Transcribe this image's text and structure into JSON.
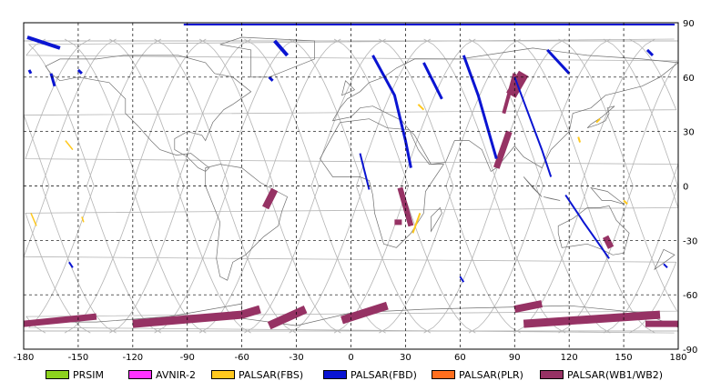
{
  "map": {
    "lon_ticks": [
      "-180",
      "-150",
      "-120",
      "-90",
      "-60",
      "-30",
      "0",
      "30",
      "60",
      "90",
      "120",
      "150",
      "180"
    ],
    "lat_ticks": [
      "90",
      "60",
      "30",
      "0",
      "-30",
      "-60",
      "-90"
    ],
    "lon_values": [
      -180,
      -150,
      -120,
      -90,
      -60,
      -30,
      0,
      30,
      60,
      90,
      120,
      150,
      180
    ],
    "lat_values": [
      90,
      60,
      30,
      0,
      -30,
      -60,
      -90
    ],
    "extent": {
      "lon": [
        -180,
        180
      ],
      "lat": [
        -90,
        90
      ]
    },
    "grid": "dashed",
    "track_color": "#b4b4b4",
    "coast_color": "#707070"
  },
  "legend": {
    "items": [
      {
        "label": "PRSIM",
        "color": "#8cd21e"
      },
      {
        "label": "AVNIR-2",
        "color": "#ff32ff"
      },
      {
        "label": "PALSAR(FBS)",
        "color": "#ffc81e"
      },
      {
        "label": "PALSAR(FBD)",
        "color": "#0a14d2"
      },
      {
        "label": "PALSAR(PLR)",
        "color": "#ff6e1e"
      },
      {
        "label": "PALSAR(WB1/WB2)",
        "color": "#963264"
      }
    ]
  }
}
